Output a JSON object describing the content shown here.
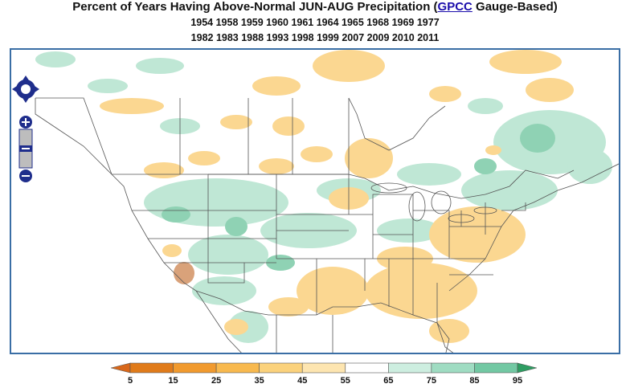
{
  "title": {
    "prefix": "Percent of Years Having Above-Normal JUN-AUG Precipitation (",
    "link": "GPCC",
    "suffix": " Gauge-Based)"
  },
  "years_line1": "1954 1958 1959 1960 1961 1964 1965 1968 1969 1977",
  "years_line2": "1982 1983 1988 1993 1998 1999 2007 2009 2010 2011",
  "legend": {
    "ticks": [
      "5",
      "15",
      "25",
      "35",
      "45",
      "55",
      "65",
      "75",
      "85",
      "95"
    ],
    "colors": [
      "#e07b1a",
      "#f19a2e",
      "#f8b94e",
      "#fbd27c",
      "#fde5b0",
      "#ffffff",
      "#cdeee0",
      "#9fdcc2",
      "#72c8a3",
      "#3fae78"
    ],
    "under_color": "#d8671a",
    "over_color": "#2e9d62"
  },
  "colors": {
    "frame": "#3a6ea5",
    "nav": "#1f2e8c",
    "border_lines": "#555555",
    "land_dry": "#fbd791",
    "land_wet": "#bfe7d5",
    "land_very_wet": "#8fd2b4",
    "land_very_dry": "#d9a27a"
  },
  "icons": {
    "pan": "pan-arrows-icon",
    "zoom_in": "plus-icon",
    "zoom_out": "minus-icon"
  }
}
